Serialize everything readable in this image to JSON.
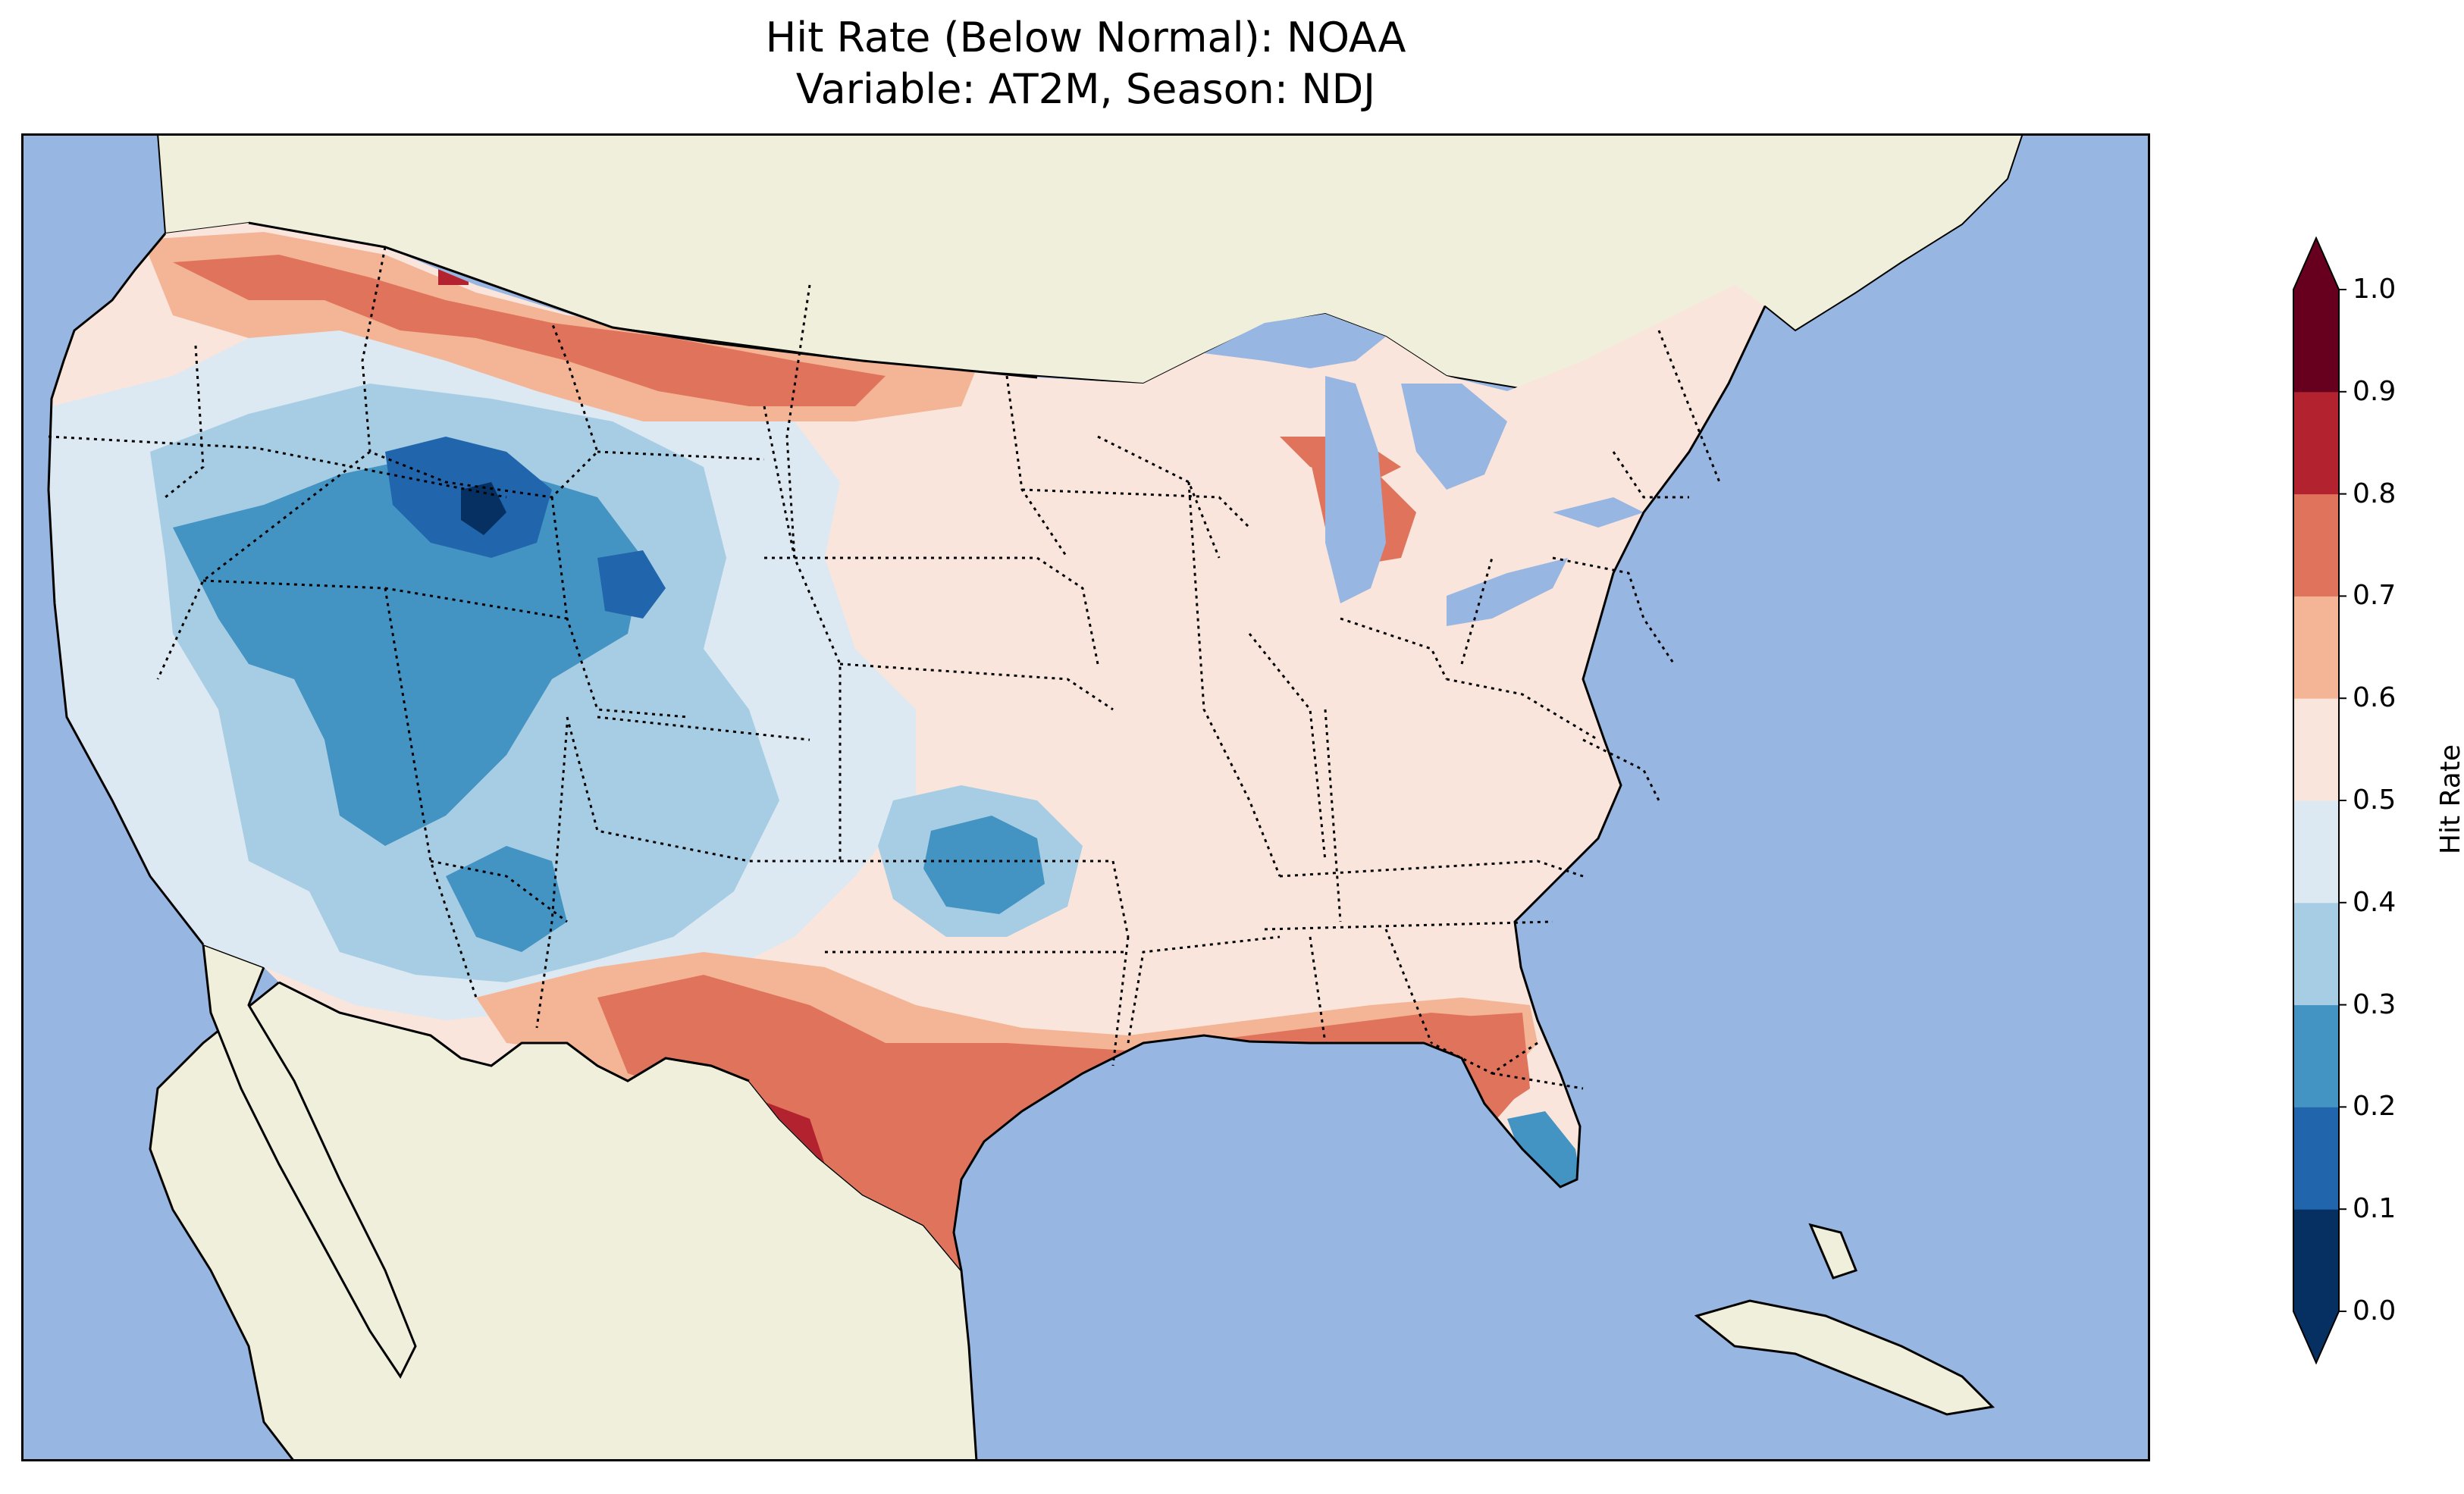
{
  "title": {
    "line1": "Hit Rate (Below Normal): NOAA",
    "line2": "Variable: AT2M, Season: NDJ"
  },
  "colors": {
    "ocean": "#97b6e1",
    "land": "#efefdb",
    "border": "#000000"
  },
  "colorbar": {
    "label": "Hit Rate",
    "ticks": [
      "0.0",
      "0.1",
      "0.2",
      "0.3",
      "0.4",
      "0.5",
      "0.6",
      "0.7",
      "0.8",
      "0.9",
      "1.0"
    ],
    "bins": [
      {
        "from": 0.0,
        "to": 0.1,
        "color": "#053061"
      },
      {
        "from": 0.1,
        "to": 0.2,
        "color": "#2166ac"
      },
      {
        "from": 0.2,
        "to": 0.3,
        "color": "#4393c3"
      },
      {
        "from": 0.3,
        "to": 0.4,
        "color": "#a6cde3"
      },
      {
        "from": 0.4,
        "to": 0.5,
        "color": "#dde9f2"
      },
      {
        "from": 0.5,
        "to": 0.6,
        "color": "#f9e5dc"
      },
      {
        "from": 0.6,
        "to": 0.7,
        "color": "#f4b596"
      },
      {
        "from": 0.7,
        "to": 0.8,
        "color": "#e0735b"
      },
      {
        "from": 0.8,
        "to": 0.9,
        "color": "#b2232f"
      },
      {
        "from": 0.9,
        "to": 1.0,
        "color": "#67001f"
      }
    ],
    "under_color": "#053061",
    "over_color": "#67001f"
  }
}
